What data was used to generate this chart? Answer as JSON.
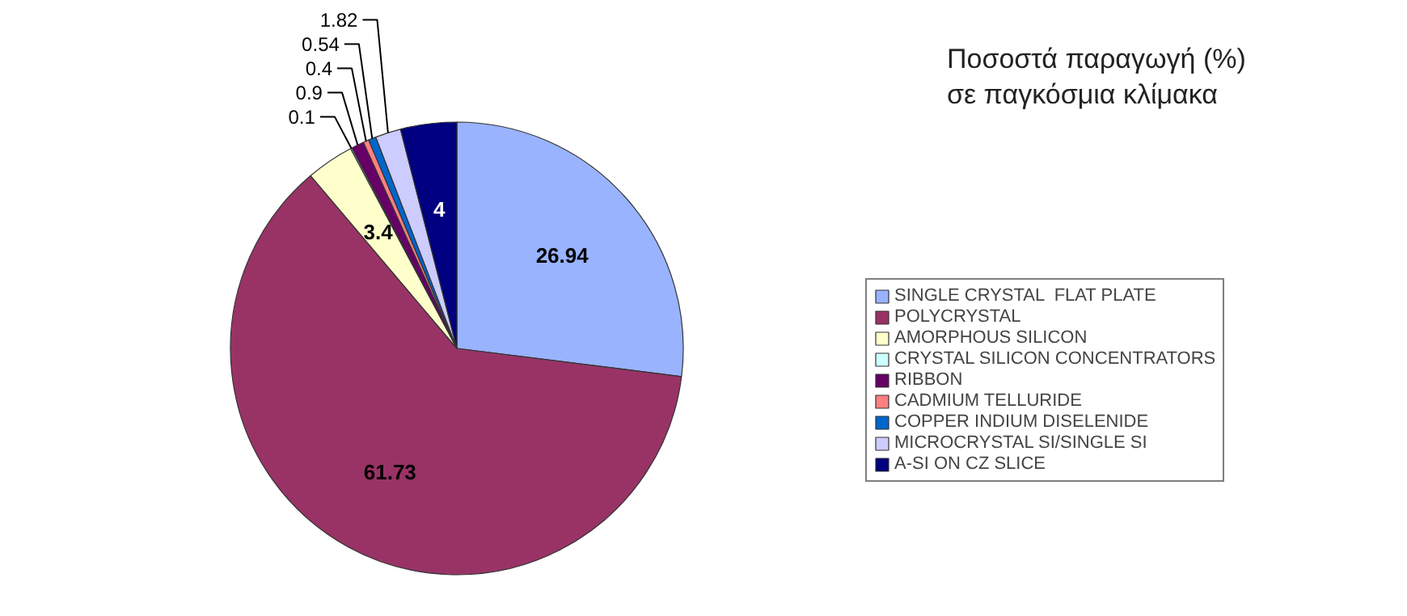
{
  "chart_data": {
    "type": "pie",
    "title": "Ποσοστά παραγωγή (%)\nσε παγκόσμια κλίμακα",
    "categories": [
      "SINGLE CRYSTAL  FLAT PLATE",
      "POLYCRYSTAL",
      "AMORPHOUS SILICON",
      "CRYSTAL SILICON CONCENTRATORS",
      "RIBBON",
      "CADMIUM TELLURIDE",
      "COPPER INDIUM DISELENIDE",
      "MICROCRYSTAL SI/SINGLE SI",
      "A-SI ON CZ SLICE"
    ],
    "values": [
      26.94,
      61.73,
      3.4,
      0.1,
      0.9,
      0.4,
      0.54,
      1.82,
      4
    ],
    "colors": [
      "#99b3ff",
      "#993366",
      "#ffffcc",
      "#ccffff",
      "#660066",
      "#ff8080",
      "#0066cc",
      "#ccccff",
      "#000080"
    ],
    "data_labels": true,
    "legend": "right"
  }
}
